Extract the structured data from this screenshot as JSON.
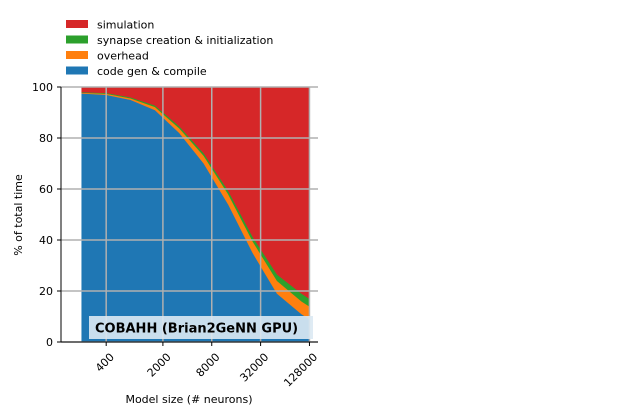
{
  "chart_data": {
    "type": "area",
    "stacked": true,
    "percent": true,
    "title": "COBAHH (Brian2GeNN GPU)",
    "xlabel": "Model size (# neurons)",
    "ylabel": "% of total time",
    "x_scale": "log2",
    "x": [
      200,
      400,
      800,
      1600,
      3200,
      6400,
      12800,
      25600,
      51200,
      102400,
      128000
    ],
    "xticks": [
      400,
      2000,
      8000,
      32000,
      128000
    ],
    "xtick_labels": [
      "400",
      "2000",
      "8000",
      "32000",
      "128000"
    ],
    "ylim": [
      0,
      100
    ],
    "yticks": [
      0,
      20,
      40,
      60,
      80,
      100
    ],
    "grid": true,
    "legend_position": "top-left, above plot",
    "series": [
      {
        "name": "code gen & compile",
        "color": "#1f77b4",
        "values": [
          97.5,
          97,
          95,
          91,
          82,
          70,
          54,
          35,
          19,
          11,
          9
        ]
      },
      {
        "name": "overhead",
        "color": "#ff7f0e",
        "values": [
          0.3,
          0.4,
          0.6,
          1.2,
          1.8,
          3,
          4,
          4.5,
          5,
          5,
          5
        ]
      },
      {
        "name": "synapse creation & initialization",
        "color": "#2ca02c",
        "values": [
          0.2,
          0.3,
          0.4,
          0.6,
          0.8,
          1,
          1.3,
          1.8,
          2.5,
          3,
          3
        ]
      },
      {
        "name": "simulation",
        "color": "#d62728",
        "values": [
          2,
          2.3,
          4,
          7.2,
          15.4,
          26,
          40.7,
          58.7,
          73.5,
          81,
          83
        ]
      }
    ]
  }
}
